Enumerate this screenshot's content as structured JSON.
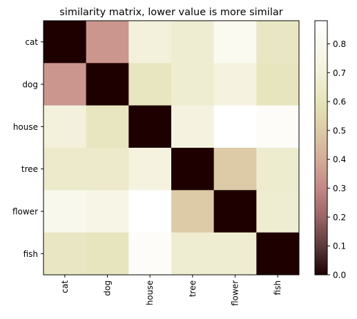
{
  "chart_data": {
    "type": "heatmap",
    "title": "similarity matrix, lower value is more similar",
    "xlabel": "",
    "ylabel": "",
    "x_labels": [
      "cat",
      "dog",
      "house",
      "tree",
      "flower",
      "fish"
    ],
    "y_labels": [
      "cat",
      "dog",
      "house",
      "tree",
      "flower",
      "fish"
    ],
    "values": [
      [
        0.0,
        0.34,
        0.78,
        0.75,
        0.84,
        0.71
      ],
      [
        0.34,
        0.0,
        0.7,
        0.75,
        0.79,
        0.67
      ],
      [
        0.78,
        0.7,
        0.0,
        0.79,
        0.88,
        0.86
      ],
      [
        0.73,
        0.73,
        0.79,
        0.0,
        0.5,
        0.74
      ],
      [
        0.83,
        0.81,
        0.88,
        0.5,
        0.0,
        0.75
      ],
      [
        0.71,
        0.67,
        0.86,
        0.75,
        0.75,
        0.0
      ]
    ],
    "colormap": "pink",
    "colorbar": {
      "vmin": 0.0,
      "vmax": 0.88,
      "ticks": [
        "0.0",
        "0.1",
        "0.2",
        "0.3",
        "0.4",
        "0.5",
        "0.6",
        "0.7",
        "0.8"
      ],
      "tick_values": [
        0.0,
        0.1,
        0.2,
        0.3,
        0.4,
        0.5,
        0.6,
        0.7,
        0.8
      ]
    },
    "grid": false,
    "legend": "none"
  }
}
